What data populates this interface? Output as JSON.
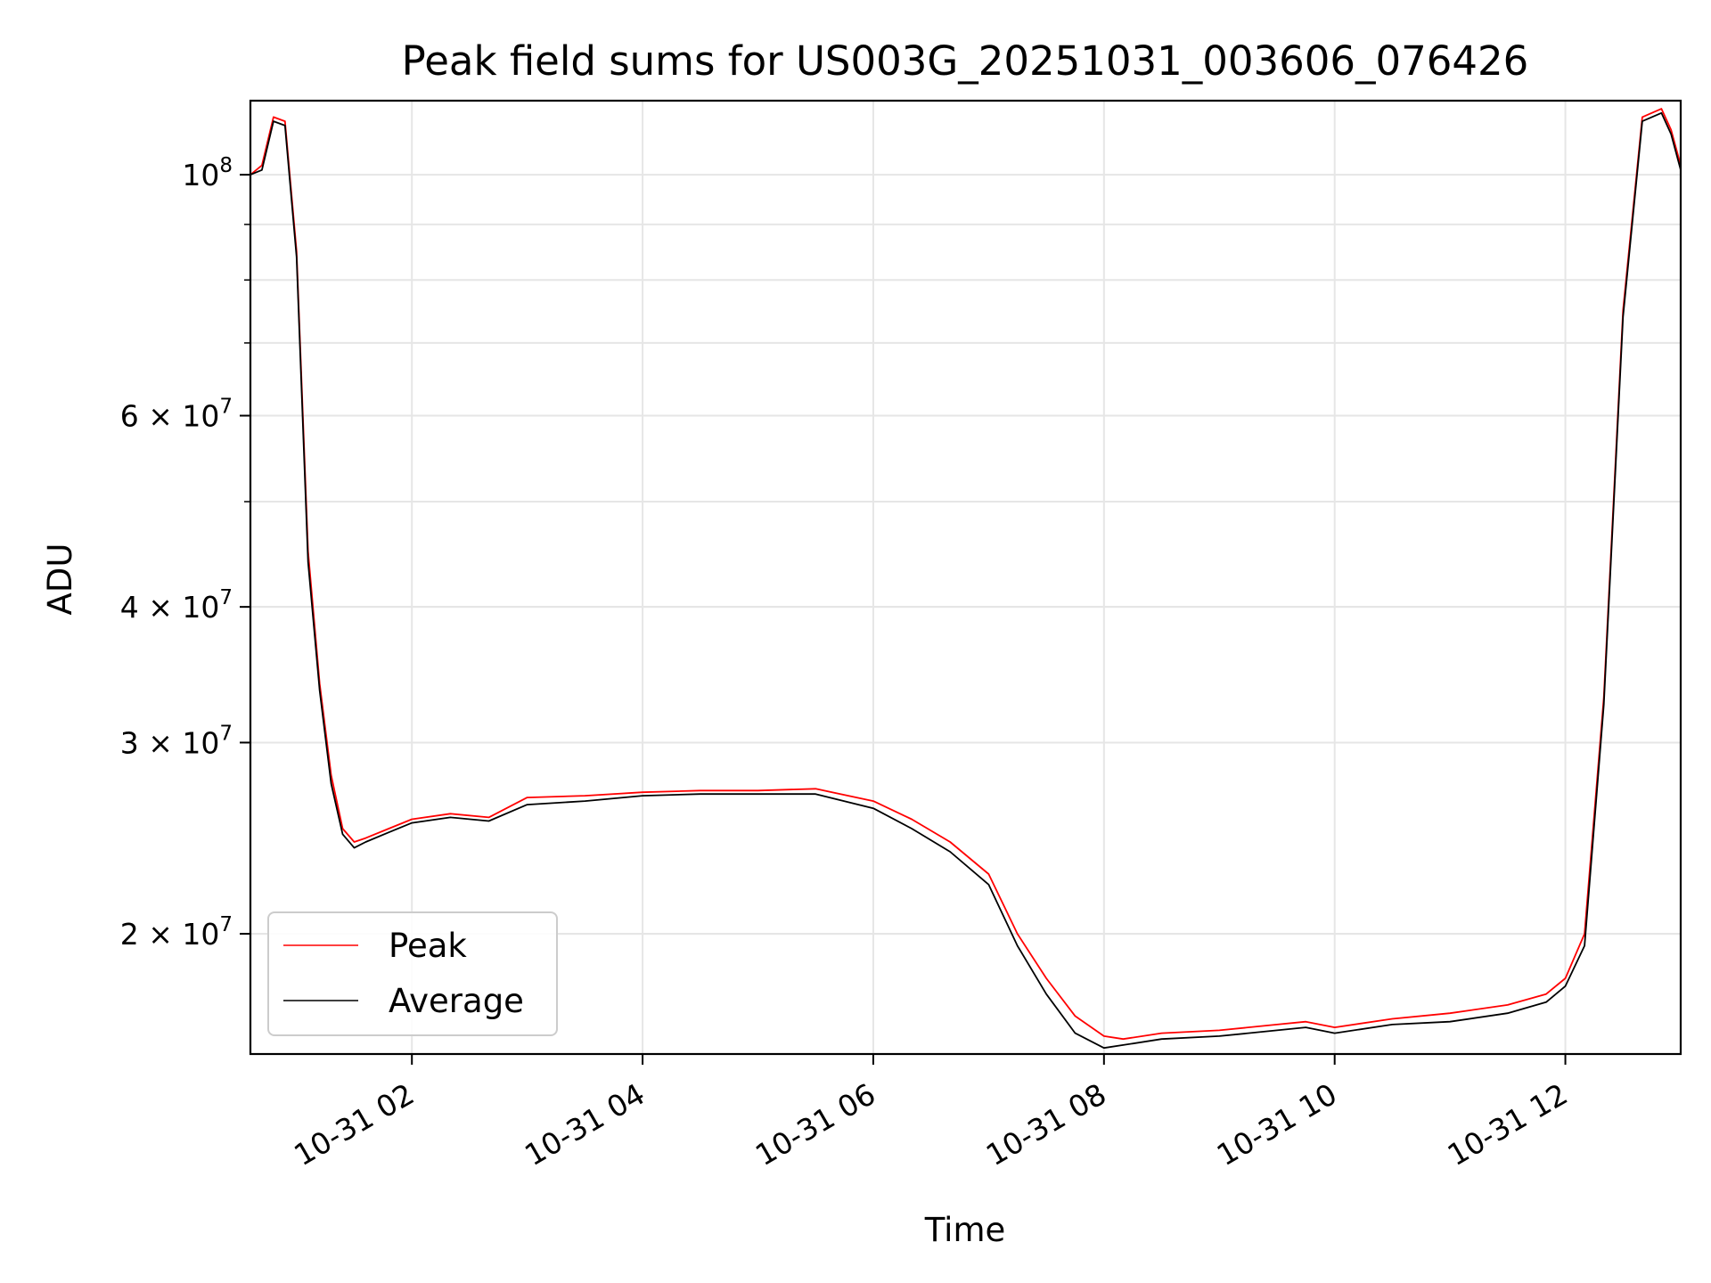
{
  "chart_data": {
    "type": "line",
    "title": "Peak field sums for US003G_20251031_003606_076426",
    "xlabel": "Time",
    "ylabel": "ADU",
    "yscale": "log",
    "grid": true,
    "legend_position": "lower-left",
    "xlim": [
      "2025-10-31 00:36",
      "2025-10-31 13:00"
    ],
    "ylim": [
      15500000,
      117000000
    ],
    "x_ticks": [
      {
        "value": "2025-10-31 02:00",
        "label": "10-31 02"
      },
      {
        "value": "2025-10-31 04:00",
        "label": "10-31 04"
      },
      {
        "value": "2025-10-31 06:00",
        "label": "10-31 06"
      },
      {
        "value": "2025-10-31 08:00",
        "label": "10-31 08"
      },
      {
        "value": "2025-10-31 10:00",
        "label": "10-31 10"
      },
      {
        "value": "2025-10-31 12:00",
        "label": "10-31 12"
      }
    ],
    "y_ticks": [
      {
        "value": 100000000,
        "base": "10",
        "exp": "8"
      },
      {
        "value": 60000000,
        "base": "6 × 10",
        "exp": "7"
      },
      {
        "value": 40000000,
        "base": "4 × 10",
        "exp": "7"
      },
      {
        "value": 30000000,
        "base": "3 × 10",
        "exp": "7"
      },
      {
        "value": 20000000,
        "base": "2 × 10",
        "exp": "7"
      }
    ],
    "y_minor_ticks": [
      20000000,
      30000000,
      40000000,
      50000000,
      60000000,
      70000000,
      80000000,
      90000000
    ],
    "series": [
      {
        "name": "Peak",
        "color": "#ff0000",
        "x": [
          "2025-10-31 00:36",
          "2025-10-31 00:42",
          "2025-10-31 00:48",
          "2025-10-31 00:54",
          "2025-10-31 01:00",
          "2025-10-31 01:06",
          "2025-10-31 01:12",
          "2025-10-31 01:18",
          "2025-10-31 01:24",
          "2025-10-31 01:30",
          "2025-10-31 01:36",
          "2025-10-31 01:48",
          "2025-10-31 02:00",
          "2025-10-31 02:20",
          "2025-10-31 02:40",
          "2025-10-31 03:00",
          "2025-10-31 03:30",
          "2025-10-31 04:00",
          "2025-10-31 04:30",
          "2025-10-31 05:00",
          "2025-10-31 05:30",
          "2025-10-31 06:00",
          "2025-10-31 06:20",
          "2025-10-31 06:40",
          "2025-10-31 07:00",
          "2025-10-31 07:15",
          "2025-10-31 07:30",
          "2025-10-31 07:45",
          "2025-10-31 08:00",
          "2025-10-31 08:10",
          "2025-10-31 08:30",
          "2025-10-31 09:00",
          "2025-10-31 09:30",
          "2025-10-31 09:45",
          "2025-10-31 10:00",
          "2025-10-31 10:30",
          "2025-10-31 11:00",
          "2025-10-31 11:30",
          "2025-10-31 11:50",
          "2025-10-31 12:00",
          "2025-10-31 12:10",
          "2025-10-31 12:20",
          "2025-10-31 12:30",
          "2025-10-31 12:40",
          "2025-10-31 12:50",
          "2025-10-31 12:55",
          "2025-10-31 13:00"
        ],
        "values": [
          100000000,
          102000000,
          113000000,
          112000000,
          85000000,
          45000000,
          34000000,
          28000000,
          25000000,
          24300000,
          24500000,
          25000000,
          25500000,
          25800000,
          25600000,
          26700000,
          26800000,
          27000000,
          27100000,
          27100000,
          27200000,
          26500000,
          25500000,
          24300000,
          22700000,
          20000000,
          18200000,
          16800000,
          16100000,
          16000000,
          16200000,
          16300000,
          16500000,
          16600000,
          16400000,
          16700000,
          16900000,
          17200000,
          17600000,
          18200000,
          20000000,
          33000000,
          75000000,
          113000000,
          115000000,
          110000000,
          102000000
        ]
      },
      {
        "name": "Average",
        "color": "#000000",
        "x": [
          "2025-10-31 00:36",
          "2025-10-31 00:42",
          "2025-10-31 00:48",
          "2025-10-31 00:54",
          "2025-10-31 01:00",
          "2025-10-31 01:06",
          "2025-10-31 01:12",
          "2025-10-31 01:18",
          "2025-10-31 01:24",
          "2025-10-31 01:30",
          "2025-10-31 01:36",
          "2025-10-31 01:48",
          "2025-10-31 02:00",
          "2025-10-31 02:20",
          "2025-10-31 02:40",
          "2025-10-31 03:00",
          "2025-10-31 03:30",
          "2025-10-31 04:00",
          "2025-10-31 04:30",
          "2025-10-31 05:00",
          "2025-10-31 05:30",
          "2025-10-31 06:00",
          "2025-10-31 06:20",
          "2025-10-31 06:40",
          "2025-10-31 07:00",
          "2025-10-31 07:15",
          "2025-10-31 07:30",
          "2025-10-31 07:45",
          "2025-10-31 08:00",
          "2025-10-31 08:10",
          "2025-10-31 08:30",
          "2025-10-31 09:00",
          "2025-10-31 09:30",
          "2025-10-31 09:45",
          "2025-10-31 10:00",
          "2025-10-31 10:30",
          "2025-10-31 11:00",
          "2025-10-31 11:30",
          "2025-10-31 11:50",
          "2025-10-31 12:00",
          "2025-10-31 12:10",
          "2025-10-31 12:20",
          "2025-10-31 12:30",
          "2025-10-31 12:40",
          "2025-10-31 12:50",
          "2025-10-31 12:55",
          "2025-10-31 13:00"
        ],
        "values": [
          100000000,
          101000000,
          112000000,
          111000000,
          84000000,
          44000000,
          33500000,
          27500000,
          24700000,
          24000000,
          24300000,
          24800000,
          25300000,
          25600000,
          25400000,
          26300000,
          26500000,
          26800000,
          26900000,
          26900000,
          26900000,
          26100000,
          25000000,
          23800000,
          22200000,
          19500000,
          17600000,
          16200000,
          15700000,
          15800000,
          16000000,
          16100000,
          16300000,
          16400000,
          16200000,
          16500000,
          16600000,
          16900000,
          17300000,
          17900000,
          19500000,
          32500000,
          74000000,
          112000000,
          114000000,
          109000000,
          101000000
        ]
      }
    ]
  },
  "legend": {
    "items": [
      {
        "label": "Peak",
        "color": "#ff0000"
      },
      {
        "label": "Average",
        "color": "#000000"
      }
    ]
  }
}
